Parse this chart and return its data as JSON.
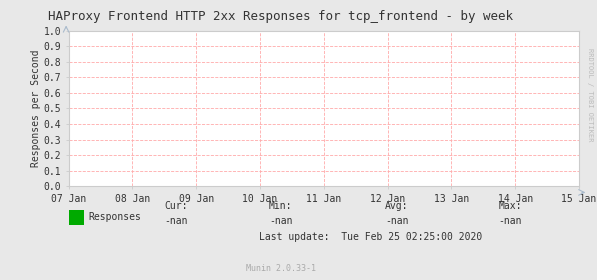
{
  "title": "HAProxy Frontend HTTP 2xx Responses for tcp_frontend - by week",
  "ylabel": "Responses per Second",
  "ylim": [
    0.0,
    1.0
  ],
  "yticks": [
    0.0,
    0.1,
    0.2,
    0.3,
    0.4,
    0.5,
    0.6,
    0.7,
    0.8,
    0.9,
    1.0
  ],
  "xlabels": [
    "07 Jan",
    "08 Jan",
    "09 Jan",
    "10 Jan",
    "11 Jan",
    "12 Jan",
    "13 Jan",
    "14 Jan",
    "15 Jan"
  ],
  "background_color": "#e8e8e8",
  "plot_bg_color": "#ffffff",
  "grid_color": "#ffaaaa",
  "title_fontsize": 9,
  "axis_fontsize": 7,
  "legend_label": "Responses",
  "legend_color": "#00aa00",
  "cur_label": "Cur:",
  "cur_val": "-nan",
  "min_label": "Min:",
  "min_val": "-nan",
  "avg_label": "Avg:",
  "avg_val": "-nan",
  "max_label": "Max:",
  "max_val": "-nan",
  "last_update": "Last update:  Tue Feb 25 02:25:00 2020",
  "munin_label": "Munin 2.0.33-1",
  "watermark": "RRDTOOL / TOBI OETIKER",
  "axis_color": "#aaaaaa",
  "spine_color": "#cccccc",
  "tick_color": "#888888",
  "text_color": "#333333"
}
